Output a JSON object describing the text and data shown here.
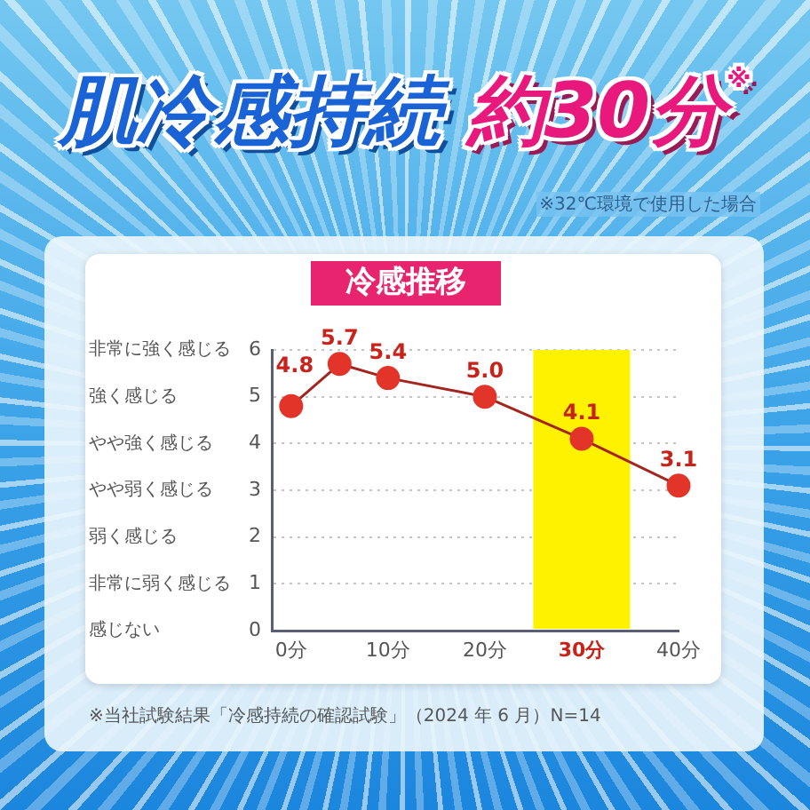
{
  "chart_data": {
    "type": "line",
    "title": "肌冷感持続 約30分$^{※}$",
    "subtitle": "冷感推移",
    "x": [
      0,
      5,
      10,
      20,
      30,
      40
    ],
    "series": [
      {
        "color": "#e3342a",
        "values": [
          4.8,
          5.7,
          5.4,
          5.0,
          4.1,
          3.1
        ],
        "value_labels": [
          "4.8",
          "5.7",
          "5.4",
          "5.0",
          "4.1",
          "3.1"
        ]
      }
    ],
    "xlim": [
      -2,
      40
    ],
    "xticks": [
      {
        "value": 0,
        "label": "0分"
      },
      {
        "value": 10,
        "label": "10分"
      },
      {
        "value": 20,
        "label": "20分"
      },
      {
        "value": 30,
        "label": "30分"
      },
      {
        "value": 40,
        "label": "40分"
      }
    ],
    "ylim": [
      0,
      6
    ],
    "yticks": [
      0,
      1,
      2,
      3,
      4,
      5,
      6
    ],
    "y2_categories": [
      "非常に強く感じる",
      "強く感じる",
      "やや強く感じる",
      "やや弱く感じる",
      "弱く感じる",
      "非常に弱く感じる",
      "感じない"
    ],
    "grid": "y",
    "legend": false,
    "marker": "circle",
    "bands": [
      {
        "axis": "x",
        "from": 25,
        "to": 35,
        "color": "#fff200"
      }
    ],
    "annotations": [
      "※32℃環境で使用した場合",
      "※当社試験結果「冷感持続の確認試験」（2024 年 6 月）N=14"
    ]
  }
}
